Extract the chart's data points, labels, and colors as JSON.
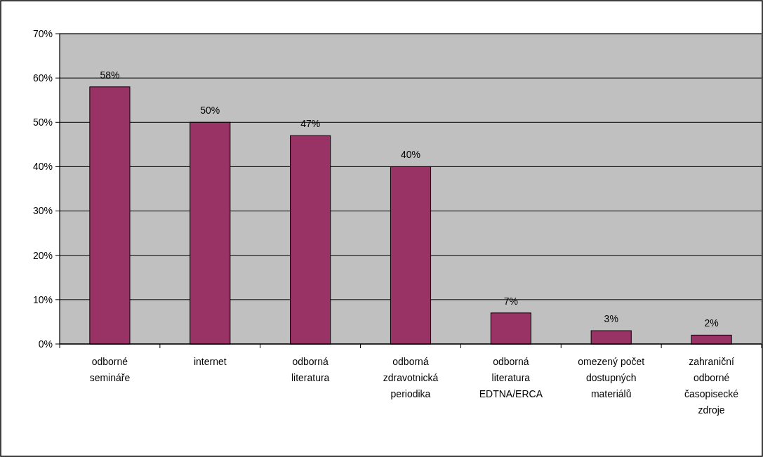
{
  "chart_data": {
    "type": "bar",
    "categories": [
      "odborné semináře",
      "internet",
      "odborná literatura",
      "odborná zdravotnická periodika",
      "odborná literatura EDTNA/ERCA",
      "omezený počet dostupných materiálů",
      "zahraniční odborné časopisecké zdroje"
    ],
    "values": [
      58,
      50,
      47,
      40,
      7,
      3,
      2
    ],
    "value_labels": [
      "58%",
      "50%",
      "47%",
      "40%",
      "7%",
      "3%",
      "2%"
    ],
    "color": "#993366",
    "ylim": [
      0,
      70
    ],
    "yticks": [
      {
        "value": 0,
        "label": "0%"
      },
      {
        "value": 10,
        "label": "10%"
      },
      {
        "value": 20,
        "label": "20%"
      },
      {
        "value": 30,
        "label": "30%"
      },
      {
        "value": 40,
        "label": "40%"
      },
      {
        "value": 50,
        "label": "50%"
      },
      {
        "value": 60,
        "label": "60%"
      },
      {
        "value": 70,
        "label": "70%"
      }
    ],
    "grid": "y"
  }
}
